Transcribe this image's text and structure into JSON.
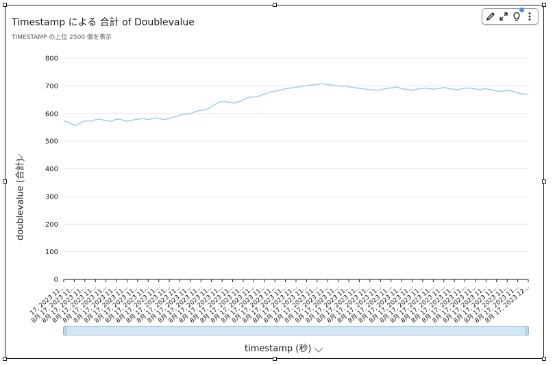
{
  "title": "Timestamp による 合計 of Doublevalue",
  "subtitle": "TIMESTAMP の上位 2500 個を表示",
  "toolbar": {
    "icons": [
      "pencil-icon",
      "expand-icon",
      "lightbulb-icon",
      "more-icon"
    ]
  },
  "colors": {
    "line": "#9fd2ea",
    "grid": "#e6e6e6",
    "axis": "#16191f",
    "scroll": "#d3e6f4"
  },
  "chart_data": {
    "type": "line",
    "title": "Timestamp による 合計 of Doublevalue",
    "subtitle": "TIMESTAMP の上位 2500 個を表示",
    "xlabel": "timestamp (秒)",
    "ylabel": "doublevalue (合計)",
    "ylim": [
      0,
      800
    ],
    "yticks": [
      "0",
      "100",
      "200",
      "300",
      "400",
      "500",
      "600",
      "700",
      "800"
    ],
    "grid": true,
    "xtick_label": "8月 17, 2023 11...",
    "xtick_first_label": "17, 2023 11...",
    "xtick_last_label": "8月 17, 2023 12...",
    "xtick_count": 45,
    "series": [
      {
        "values": [
          572,
          570,
          562,
          556,
          565,
          571,
          574,
          572,
          578,
          580,
          576,
          574,
          572,
          578,
          580,
          575,
          572,
          575,
          578,
          580,
          582,
          578,
          580,
          584,
          582,
          578,
          580,
          585,
          588,
          592,
          596,
          598,
          600,
          606,
          610,
          612,
          615,
          622,
          632,
          640,
          644,
          642,
          640,
          638,
          642,
          648,
          655,
          660,
          660,
          662,
          668,
          672,
          678,
          680,
          682,
          686,
          690,
          692,
          694,
          696,
          698,
          700,
          702,
          704,
          706,
          708,
          706,
          704,
          702,
          700,
          698,
          700,
          696,
          694,
          692,
          690,
          688,
          686,
          685,
          684,
          686,
          690,
          692,
          694,
          696,
          690,
          688,
          686,
          684,
          688,
          690,
          692,
          690,
          688,
          690,
          692,
          694,
          690,
          688,
          686,
          688,
          692,
          692,
          690,
          688,
          686,
          690,
          688,
          684,
          682,
          680,
          682,
          684,
          680,
          676,
          672,
          670,
          670
        ]
      }
    ]
  }
}
